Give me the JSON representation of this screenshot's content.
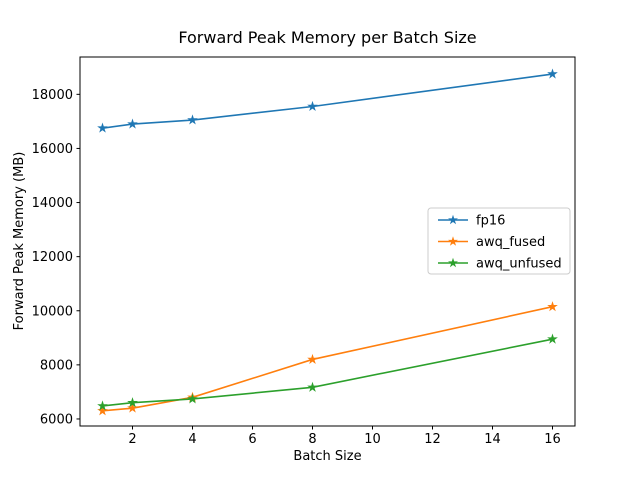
{
  "chart_data": {
    "type": "line",
    "title": "Forward Peak Memory per Batch Size",
    "xlabel": "Batch Size",
    "ylabel": "Forward Peak Memory (MB)",
    "x": [
      1,
      2,
      4,
      8,
      16
    ],
    "series": [
      {
        "name": "fp16",
        "color": "#1f77b4",
        "marker": "star",
        "values": [
          16750,
          16900,
          17050,
          17550,
          18750
        ]
      },
      {
        "name": "awq_fused",
        "color": "#ff7f0e",
        "marker": "star",
        "values": [
          6300,
          6400,
          6800,
          8200,
          10150
        ]
      },
      {
        "name": "awq_unfused",
        "color": "#2ca02c",
        "marker": "star",
        "values": [
          6480,
          6600,
          6740,
          7170,
          8950
        ]
      }
    ],
    "xlim": [
      0.25,
      16.75
    ],
    "ylim": [
      5740,
      19380
    ],
    "xticks": [
      2,
      4,
      6,
      8,
      10,
      12,
      14,
      16
    ],
    "yticks": [
      6000,
      8000,
      10000,
      12000,
      14000,
      16000,
      18000
    ],
    "grid": false,
    "legend_position": "center-right",
    "legend_labels": [
      "fp16",
      "awq_fused",
      "awq_unfused"
    ],
    "background_color": "#ffffff",
    "spine_color": "#000000",
    "legend_border_color": "#cccccc"
  }
}
